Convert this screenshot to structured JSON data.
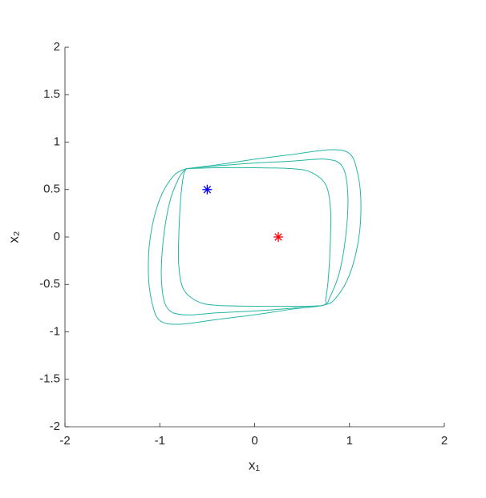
{
  "chart_data": {
    "type": "phase",
    "xlabel": "x₁",
    "ylabel": "x₂",
    "xlim": [
      -2,
      2
    ],
    "xticks": [
      -2,
      -1,
      0,
      1,
      2
    ],
    "ylim": [
      -2,
      2
    ],
    "yticks": [
      -2,
      -1.5,
      -1,
      -0.5,
      0,
      0.5,
      1,
      1.5,
      2
    ],
    "series": [
      {
        "color": "#26b5a4",
        "marker": "line",
        "x": [
          -0.72,
          -0.4,
          0,
          0.4,
          0.8,
          1.0,
          1.08,
          1.12,
          1.1,
          1.0,
          0.85,
          0.72,
          0.4,
          0,
          -0.4,
          -0.8,
          -1.0,
          -1.08,
          -1.12,
          -1.1,
          -1.0,
          -0.85,
          -0.72
        ],
        "y": [
          0.72,
          0.76,
          0.82,
          0.87,
          0.92,
          0.88,
          0.7,
          0.4,
          0,
          -0.4,
          -0.65,
          -0.72,
          -0.76,
          -0.82,
          -0.87,
          -0.92,
          -0.88,
          -0.7,
          -0.4,
          0,
          0.4,
          0.65,
          0.72
        ]
      },
      {
        "color": "#26b5a4",
        "marker": "line",
        "x": [
          -0.72,
          -0.4,
          0,
          0.4,
          0.75,
          0.92,
          0.98,
          0.97,
          0.9,
          0.8,
          0.72,
          0.4,
          0,
          -0.4,
          -0.75,
          -0.92,
          -0.98,
          -0.97,
          -0.9,
          -0.8,
          -0.72
        ],
        "y": [
          0.72,
          0.75,
          0.78,
          0.8,
          0.82,
          0.75,
          0.5,
          0.1,
          -0.35,
          -0.62,
          -0.72,
          -0.75,
          -0.78,
          -0.8,
          -0.82,
          -0.75,
          -0.5,
          -0.1,
          0.35,
          0.62,
          0.72
        ]
      },
      {
        "color": "#26b5a4",
        "marker": "line",
        "x": [
          -0.72,
          -0.4,
          0,
          0.4,
          0.6,
          0.75,
          0.8,
          0.8,
          0.78,
          0.75,
          0.72,
          0.4,
          0,
          -0.4,
          -0.6,
          -0.75,
          -0.8,
          -0.8,
          -0.78,
          -0.75,
          -0.72
        ],
        "y": [
          0.72,
          0.73,
          0.73,
          0.72,
          0.68,
          0.55,
          0.3,
          0,
          -0.4,
          -0.65,
          -0.72,
          -0.73,
          -0.73,
          -0.72,
          -0.68,
          -0.55,
          -0.3,
          0,
          0.4,
          0.65,
          0.72
        ]
      },
      {
        "color": "#0000ff",
        "marker": "star",
        "x": [
          -0.5
        ],
        "y": [
          0.5
        ]
      },
      {
        "color": "#ff0000",
        "marker": "star",
        "x": [
          0.25
        ],
        "y": [
          0
        ]
      }
    ]
  }
}
